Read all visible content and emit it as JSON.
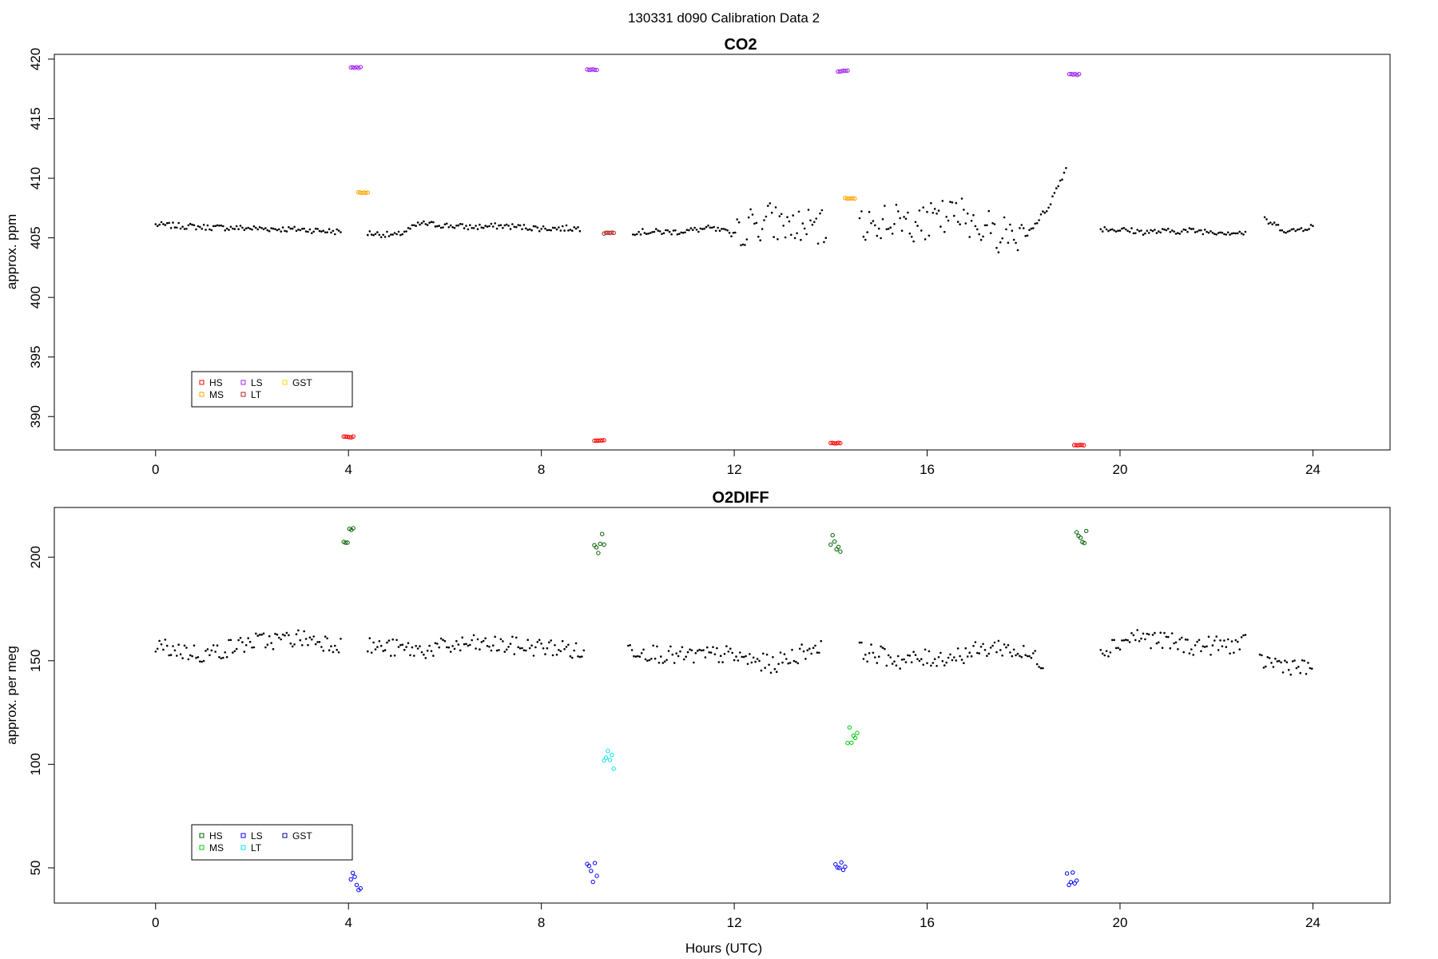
{
  "figure": {
    "suptitle": "130331   d090   Calibration Data 2"
  },
  "chart_data": [
    {
      "type": "scatter",
      "title": "CO2",
      "xlabel": "",
      "ylabel": "approx. ppm",
      "xlim": [
        -2.1,
        25.6
      ],
      "ylim": [
        387.2,
        420.4
      ],
      "xticks": [
        0,
        4,
        8,
        12,
        16,
        20,
        24
      ],
      "yticks": [
        390,
        395,
        400,
        405,
        410,
        415,
        420
      ],
      "grid": false,
      "legend": {
        "placement": "bottom-left",
        "entries": [
          {
            "label": "HS",
            "color": "#ff0000"
          },
          {
            "label": "MS",
            "color": "#ffa500"
          },
          {
            "label": "LS",
            "color": "#a020f0"
          },
          {
            "label": "LT",
            "color": "#b22222"
          },
          {
            "label": "GST",
            "color": "#ffd700"
          }
        ]
      },
      "baseline": {
        "color": "#000000",
        "segments": [
          {
            "x": [
              0.0,
              1.0,
              2.0,
              3.0,
              3.85
            ],
            "y": [
              406.1,
              405.9,
              405.8,
              405.7,
              405.5
            ]
          },
          {
            "x": [
              4.4,
              5.0,
              5.5,
              6.5,
              7.2,
              8.0,
              8.8
            ],
            "y": [
              405.4,
              405.2,
              406.2,
              405.9,
              406.0,
              405.8,
              405.8
            ]
          },
          {
            "x": [
              9.9,
              10.8,
              11.5,
              12.0,
              12.6,
              13.2,
              13.9
            ],
            "y": [
              405.5,
              405.5,
              405.8,
              405.3,
              406.5,
              406.0,
              405.6
            ]
          },
          {
            "x": [
              14.6,
              15.4,
              16.0,
              16.7,
              17.4,
              18.0,
              18.5,
              18.9
            ],
            "y": [
              406.0,
              406.6,
              406.2,
              407.0,
              405.5,
              405.0,
              407.5,
              411.0
            ]
          },
          {
            "x": [
              19.6,
              20.5,
              21.5,
              22.6
            ],
            "y": [
              405.8,
              405.5,
              405.6,
              405.4
            ]
          },
          {
            "x": [
              23.0,
              23.5,
              24.0
            ],
            "y": [
              406.5,
              405.5,
              406.0
            ]
          }
        ]
      },
      "series": [
        {
          "name": "HS",
          "color": "#ff0000",
          "x": [
            4.0,
            9.2,
            14.1,
            19.15
          ],
          "y": [
            388.3,
            388.0,
            387.8,
            387.6
          ]
        },
        {
          "name": "MS",
          "color": "#ffa500",
          "x": [
            4.3,
            14.4
          ],
          "y": [
            408.8,
            408.3
          ]
        },
        {
          "name": "LS",
          "color": "#a020f0",
          "x": [
            4.15,
            9.05,
            14.25,
            19.05
          ],
          "y": [
            419.3,
            419.1,
            419.0,
            418.7
          ]
        },
        {
          "name": "LT",
          "color": "#b22222",
          "x": [
            9.4
          ],
          "y": [
            405.4
          ]
        },
        {
          "name": "GST",
          "color": "#ffd700",
          "x": [],
          "y": []
        }
      ]
    },
    {
      "type": "scatter",
      "title": "O2DIFF",
      "xlabel": "Hours (UTC)",
      "ylabel": "approx. per meg",
      "xlim": [
        -2.1,
        25.6
      ],
      "ylim": [
        33,
        224
      ],
      "xticks": [
        0,
        4,
        8,
        12,
        16,
        20,
        24
      ],
      "yticks": [
        50,
        100,
        150,
        200
      ],
      "grid": false,
      "legend": {
        "placement": "bottom-left",
        "entries": [
          {
            "label": "HS",
            "color": "#006400"
          },
          {
            "label": "MS",
            "color": "#00cc00"
          },
          {
            "label": "LS",
            "color": "#0000ff"
          },
          {
            "label": "LT",
            "color": "#00e5ee"
          },
          {
            "label": "GST",
            "color": "#00008b"
          }
        ]
      },
      "baseline": {
        "color": "#000000",
        "segments": [
          {
            "x": [
              0.0,
              1.0,
              2.0,
              3.0,
              3.85
            ],
            "y": [
              157,
              153,
              159,
              161,
              158
            ]
          },
          {
            "x": [
              4.4,
              5.5,
              6.5,
              7.5,
              8.5,
              8.9
            ],
            "y": [
              157,
              155,
              158,
              157,
              156,
              153
            ]
          },
          {
            "x": [
              9.8,
              10.8,
              11.8,
              12.8,
              13.8
            ],
            "y": [
              156,
              152,
              153,
              148,
              158
            ]
          },
          {
            "x": [
              14.6,
              15.5,
              16.5,
              17.5,
              18.4
            ],
            "y": [
              155,
              150,
              152,
              157,
              150
            ]
          },
          {
            "x": [
              19.6,
              20.3,
              21.5,
              22.6
            ],
            "y": [
              155,
              162,
              157,
              158
            ]
          },
          {
            "x": [
              22.9,
              23.5,
              24.0
            ],
            "y": [
              150,
              148,
              145
            ]
          }
        ]
      },
      "series": [
        {
          "name": "HS",
          "color": "#006400",
          "x": [
            4.0,
            9.2,
            14.1,
            19.2
          ],
          "y": [
            209,
            207,
            206,
            210
          ]
        },
        {
          "name": "MS",
          "color": "#00cc00",
          "x": [
            14.45
          ],
          "y": [
            115
          ]
        },
        {
          "name": "LS",
          "color": "#0000ff",
          "x": [
            4.15,
            9.05,
            14.2,
            19.0
          ],
          "y": [
            43,
            48,
            48,
            45
          ]
        },
        {
          "name": "LT",
          "color": "#00e5ee",
          "x": [
            9.4
          ],
          "y": [
            102
          ]
        },
        {
          "name": "GST",
          "color": "#00008b",
          "x": [],
          "y": []
        }
      ]
    }
  ]
}
